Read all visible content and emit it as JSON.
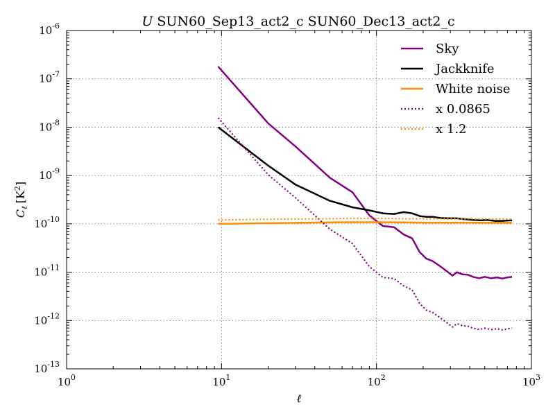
{
  "chart_data": {
    "type": "line",
    "title_prefix": "U",
    "title": "SUN60_Sep13_act2_c SUN60_Dec13_act2_c",
    "xlabel": "ℓ",
    "ylabel": "C",
    "ylabel_sub": "ℓ",
    "ylabel_unit": "[K",
    "ylabel_unit_sup": "2",
    "ylabel_unit_close": "]",
    "xscale": "log",
    "yscale": "log",
    "xlim": [
      1,
      1000
    ],
    "ylim": [
      1e-13,
      1e-06
    ],
    "x_ticks": [
      {
        "base": "10",
        "exp": "0"
      },
      {
        "base": "10",
        "exp": "1"
      },
      {
        "base": "10",
        "exp": "2"
      },
      {
        "base": "10",
        "exp": "3"
      }
    ],
    "y_ticks": [
      {
        "base": "10",
        "exp": "-13"
      },
      {
        "base": "10",
        "exp": "-12"
      },
      {
        "base": "10",
        "exp": "-11"
      },
      {
        "base": "10",
        "exp": "-10"
      },
      {
        "base": "10",
        "exp": "-9"
      },
      {
        "base": "10",
        "exp": "-8"
      },
      {
        "base": "10",
        "exp": "-7"
      },
      {
        "base": "10",
        "exp": "-6"
      }
    ],
    "grid": true,
    "legend_position": "top-right",
    "series": [
      {
        "name": "Sky",
        "color": "#800080",
        "style": "solid",
        "x": [
          9.5,
          20,
          30,
          50,
          70,
          90,
          110,
          130,
          150,
          170,
          190,
          210,
          230,
          260,
          290,
          310,
          330,
          360,
          390,
          420,
          460,
          500,
          550,
          600,
          650,
          700,
          750
        ],
        "y": [
          1.8e-07,
          1.2e-08,
          4e-09,
          9e-10,
          4.5e-10,
          1.5e-10,
          9e-11,
          8.5e-11,
          6e-11,
          5e-11,
          2.6e-11,
          1.9e-11,
          1.7e-11,
          1.3e-11,
          1e-11,
          8.5e-12,
          1e-11,
          9e-12,
          8.8e-12,
          8e-12,
          7.5e-12,
          8e-12,
          7.5e-12,
          7.8e-12,
          7.4e-12,
          7.8e-12,
          8e-12
        ]
      },
      {
        "name": "Jackknife",
        "color": "#000000",
        "style": "solid",
        "x": [
          9.5,
          20,
          30,
          50,
          70,
          90,
          110,
          130,
          150,
          170,
          190,
          210,
          230,
          260,
          290,
          330,
          370,
          420,
          470,
          520,
          580,
          650,
          750
        ],
        "y": [
          1e-08,
          1.6e-09,
          6.5e-10,
          3e-10,
          2.2e-10,
          1.9e-10,
          1.65e-10,
          1.6e-10,
          1.75e-10,
          1.65e-10,
          1.45e-10,
          1.4e-10,
          1.4e-10,
          1.32e-10,
          1.3e-10,
          1.3e-10,
          1.25e-10,
          1.2e-10,
          1.18e-10,
          1.2e-10,
          1.15e-10,
          1.15e-10,
          1.18e-10
        ]
      },
      {
        "name": "White noise",
        "color": "#ff8c00",
        "style": "solid",
        "x": [
          9.5,
          20,
          30,
          50,
          70,
          100,
          150,
          200,
          300,
          400,
          500,
          600,
          750
        ],
        "y": [
          1e-10,
          1.03e-10,
          1.05e-10,
          1.07e-10,
          1.08e-10,
          1.08e-10,
          1.07e-10,
          1.06e-10,
          1.06e-10,
          1.06e-10,
          1.05e-10,
          1.05e-10,
          1.05e-10
        ]
      },
      {
        "name": "x 0.0865",
        "color": "#800080",
        "style": "dotted",
        "x": [
          9.5,
          20,
          30,
          50,
          70,
          90,
          110,
          130,
          150,
          170,
          190,
          210,
          230,
          260,
          290,
          310,
          330,
          360,
          390,
          420,
          460,
          500,
          550,
          600,
          650,
          700,
          750
        ],
        "y": [
          1.56e-08,
          1.04e-09,
          3.46e-10,
          7.8e-11,
          3.9e-11,
          1.3e-11,
          7.8e-12,
          7.35e-12,
          5.2e-12,
          4.3e-12,
          2.25e-12,
          1.64e-12,
          1.47e-12,
          1.12e-12,
          8.65e-13,
          7.35e-13,
          8.65e-13,
          7.8e-13,
          7.6e-13,
          6.9e-13,
          6.5e-13,
          6.9e-13,
          6.5e-13,
          6.75e-13,
          6.4e-13,
          6.75e-13,
          6.9e-13
        ]
      },
      {
        "name": "x 1.2",
        "color": "#ff8c00",
        "style": "dotted",
        "x": [
          9.5,
          20,
          30,
          50,
          70,
          100,
          150,
          200,
          300,
          400,
          500,
          600,
          750
        ],
        "y": [
          1.2e-10,
          1.24e-10,
          1.26e-10,
          1.28e-10,
          1.3e-10,
          1.3e-10,
          1.28e-10,
          1.27e-10,
          1.27e-10,
          1.27e-10,
          1.26e-10,
          1.26e-10,
          1.26e-10
        ]
      }
    ]
  }
}
